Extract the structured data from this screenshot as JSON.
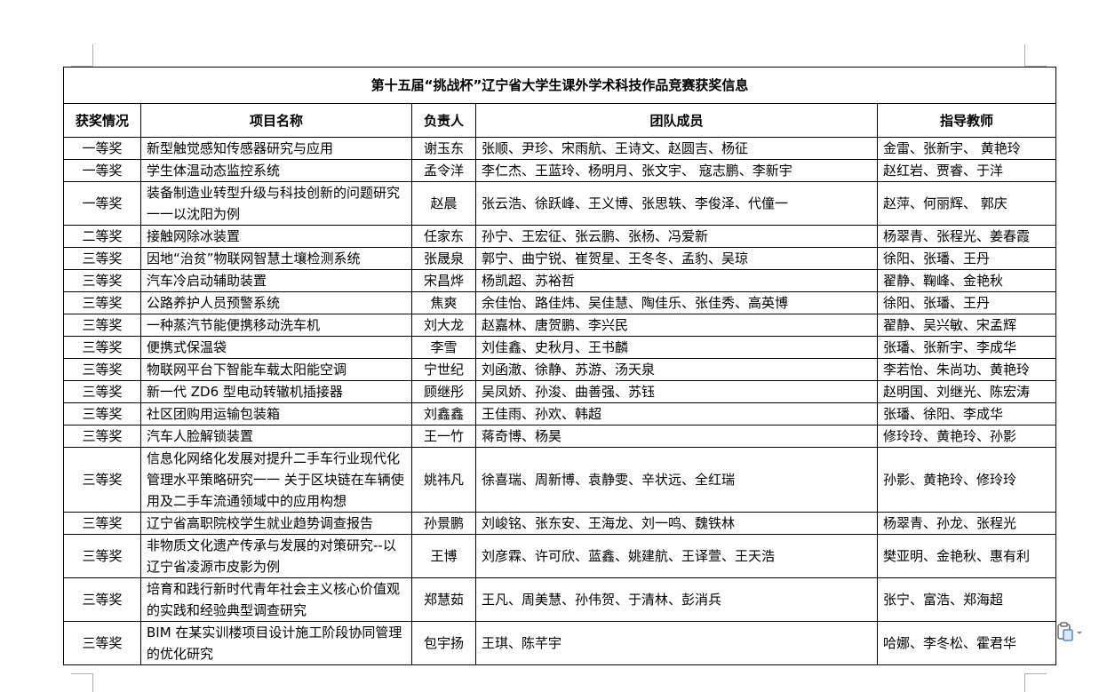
{
  "title": "第十五届“挑战杯”辽宁省大学生课外学术科技作品竞赛获奖信息",
  "headers": [
    "获奖情况",
    "项目名称",
    "负责人",
    "团队成员",
    "指导教师"
  ],
  "rows": [
    {
      "award": "一等奖",
      "project": "新型触觉感知传感器研究与应用",
      "leader": "谢玉东",
      "members": "张顺、尹珍、宋雨航、王诗文、赵圆吉、杨征",
      "advisors": "金雷、张新宇、  黄艳玲"
    },
    {
      "award": "一等奖",
      "project": "学生体温动态监控系统",
      "leader": "孟令洋",
      "members": "李仁杰、王蓝玲、杨明月、张文宇、  寇志鹏、李新宇",
      "advisors": "赵红岩、贾睿、于洋"
    },
    {
      "award": "一等奖",
      "project": "装备制造业转型升级与科技创新的问题研究一一以沈阳为例",
      "leader": "赵晨",
      "members": "张云浩、徐跃峰、王义博、张思轶、李俊泽、代僮一",
      "advisors": "赵萍、何丽辉、  郭庆"
    },
    {
      "award": "二等奖",
      "project": "接触网除冰装置",
      "leader": "任家东",
      "members": "孙宁、王宏征、张云鹏、张杨、冯爱新",
      "advisors": "杨翠青、张程光、姜春霞"
    },
    {
      "award": "三等奖",
      "project": "因地“治贫”物联网智慧土壤检测系统",
      "leader": "张晟泉",
      "members": "郭宁、曲宁锐、崔贺星、王冬冬、孟豹、吴琼",
      "advisors": "徐阳、张璠、王丹"
    },
    {
      "award": "三等奖",
      "project": "汽车冷启动辅助装置",
      "leader": "宋昌烨",
      "members": "杨凯超、苏裕哲",
      "advisors": "翟静、鞠峰、金艳秋"
    },
    {
      "award": "三等奖",
      "project": "公路养护人员预警系统",
      "leader": "焦爽",
      "members": "余佳怡、路佳炜、吴佳慧、陶佳乐、张佳秀、高英博",
      "advisors": "徐阳、张璠、王丹"
    },
    {
      "award": "三等奖",
      "project": "一种蒸汽节能便携移动洗车机",
      "leader": "刘大龙",
      "members": "赵嘉林、唐贺鹏、李兴民",
      "advisors": "翟静、吴兴敏、宋孟辉"
    },
    {
      "award": "三等奖",
      "project": "便携式保温袋",
      "leader": "李雪",
      "members": "刘佳鑫、史秋月、王书麟",
      "advisors": "张璠、张新宇、李成华"
    },
    {
      "award": "三等奖",
      "project": "物联网平台下智能车载太阳能空调",
      "leader": "宁世纪",
      "members": "刘函澈、徐静、苏游、汤天泉",
      "advisors": "李若怡、朱尚功、黄艳玲"
    },
    {
      "award": "三等奖",
      "project": "新一代 ZD6 型电动转辙机插接器",
      "leader": "顾继彤",
      "members": "吴凤娇、孙浚、曲善强、苏钰",
      "advisors": "赵明国、刘继光、陈宏涛"
    },
    {
      "award": "三等奖",
      "project": "社区团购用运输包装箱",
      "leader": "刘鑫鑫",
      "members": "王佳雨、孙欢、韩超",
      "advisors": "张璠、徐阳、李成华"
    },
    {
      "award": "三等奖",
      "project": "汽车人脸解锁装置",
      "leader": "王一竹",
      "members": "蒋奇博、杨昊",
      "advisors": "修玲玲、黄艳玲、孙影"
    },
    {
      "award": "三等奖",
      "project": "信息化网络化发展对提升二手车行业现代化管理水平策略研究一一 关于区块链在车辆使用及二手车流通领域中的应用构想",
      "leader": "姚祎凡",
      "members": "徐喜瑞、周新博、袁静雯、辛状远、全红瑞",
      "advisors": "孙影、黄艳玲、修玲玲"
    },
    {
      "award": "三等奖",
      "project": "辽宁省高职院校学生就业趋势调查报告",
      "leader": "孙景鹏",
      "members": "刘峻铭、张东安、王海龙、刘一鸣、魏铁林",
      "advisors": "杨翠青、孙龙、张程光"
    },
    {
      "award": "三等奖",
      "project": "非物质文化遗产传承与发展的对策研究--以辽宁省凌源市皮影为例",
      "leader": "王博",
      "members": "刘彦霖、许可欣、蓝鑫、姚建航、王译萱、王天浩",
      "advisors": "樊亚明、金艳秋、惠有利"
    },
    {
      "award": "三等奖",
      "project": "培育和践行新时代青年社会主义核心价值观的实践和经验典型调查研究",
      "leader": "郑慧茹",
      "members": "王凡、周美慧、孙伟贺、于清林、彭消兵",
      "advisors": "张宁、富浩、郑海超"
    },
    {
      "award": "三等奖",
      "project": "BIM 在某实训楼项目设计施工阶段协同管理的优化研究",
      "leader": "包宇扬",
      "members": "王琪、陈芊宇",
      "advisors": "哈娜、李冬松、霍君华"
    }
  ],
  "icons": {
    "paste_options": "clipboard-icon"
  }
}
